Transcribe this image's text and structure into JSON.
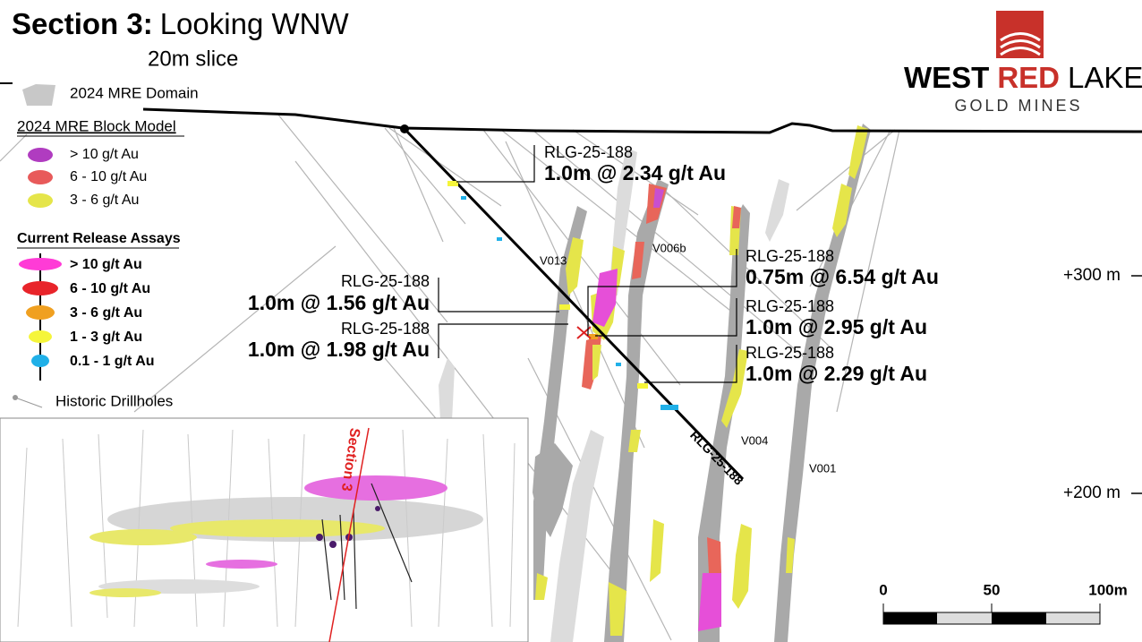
{
  "header": {
    "title_bold": "Section 3:",
    "title_rest": "Looking WNW",
    "subtitle": "20m slice"
  },
  "logo": {
    "word1": "WEST",
    "word2": "RED",
    "word3": "LAKE",
    "line2": "GOLD MINES"
  },
  "legend": {
    "domain": "2024 MRE Domain",
    "block_model_title": "2024 MRE Block Model",
    "block_model": [
      "> 10 g/t Au",
      "6 - 10 g/t Au",
      "3 - 6 g/t Au"
    ],
    "assays_title": "Current Release Assays",
    "assays": [
      "> 10 g/t Au",
      "6 - 10 g/t Au",
      "3 - 6 g/t Au",
      "1 - 3 g/t Au",
      "0.1 - 1 g/t Au"
    ],
    "historic": "Historic Drillholes"
  },
  "intercepts": [
    {
      "hole": "RLG-25-188",
      "result": "1.0m @ 2.34 g/t Au"
    },
    {
      "hole": "RLG-25-188",
      "result": "0.75m @ 6.54 g/t Au"
    },
    {
      "hole": "RLG-25-188",
      "result": "1.0m @ 2.95 g/t Au"
    },
    {
      "hole": "RLG-25-188",
      "result": "1.0m @ 2.29 g/t Au"
    },
    {
      "hole": "RLG-25-188",
      "result": "1.0m @ 1.56 g/t Au"
    },
    {
      "hole": "RLG-25-188",
      "result": "1.0m @ 1.98 g/t Au"
    }
  ],
  "drillhole_label": "RLG-25-188",
  "veins": [
    "V013",
    "V006b",
    "V004",
    "V001"
  ],
  "elevations": [
    "+300 m",
    "+200 m"
  ],
  "scale": [
    "0",
    "50",
    "100m"
  ],
  "inset": {
    "section_label": "Section 3"
  }
}
